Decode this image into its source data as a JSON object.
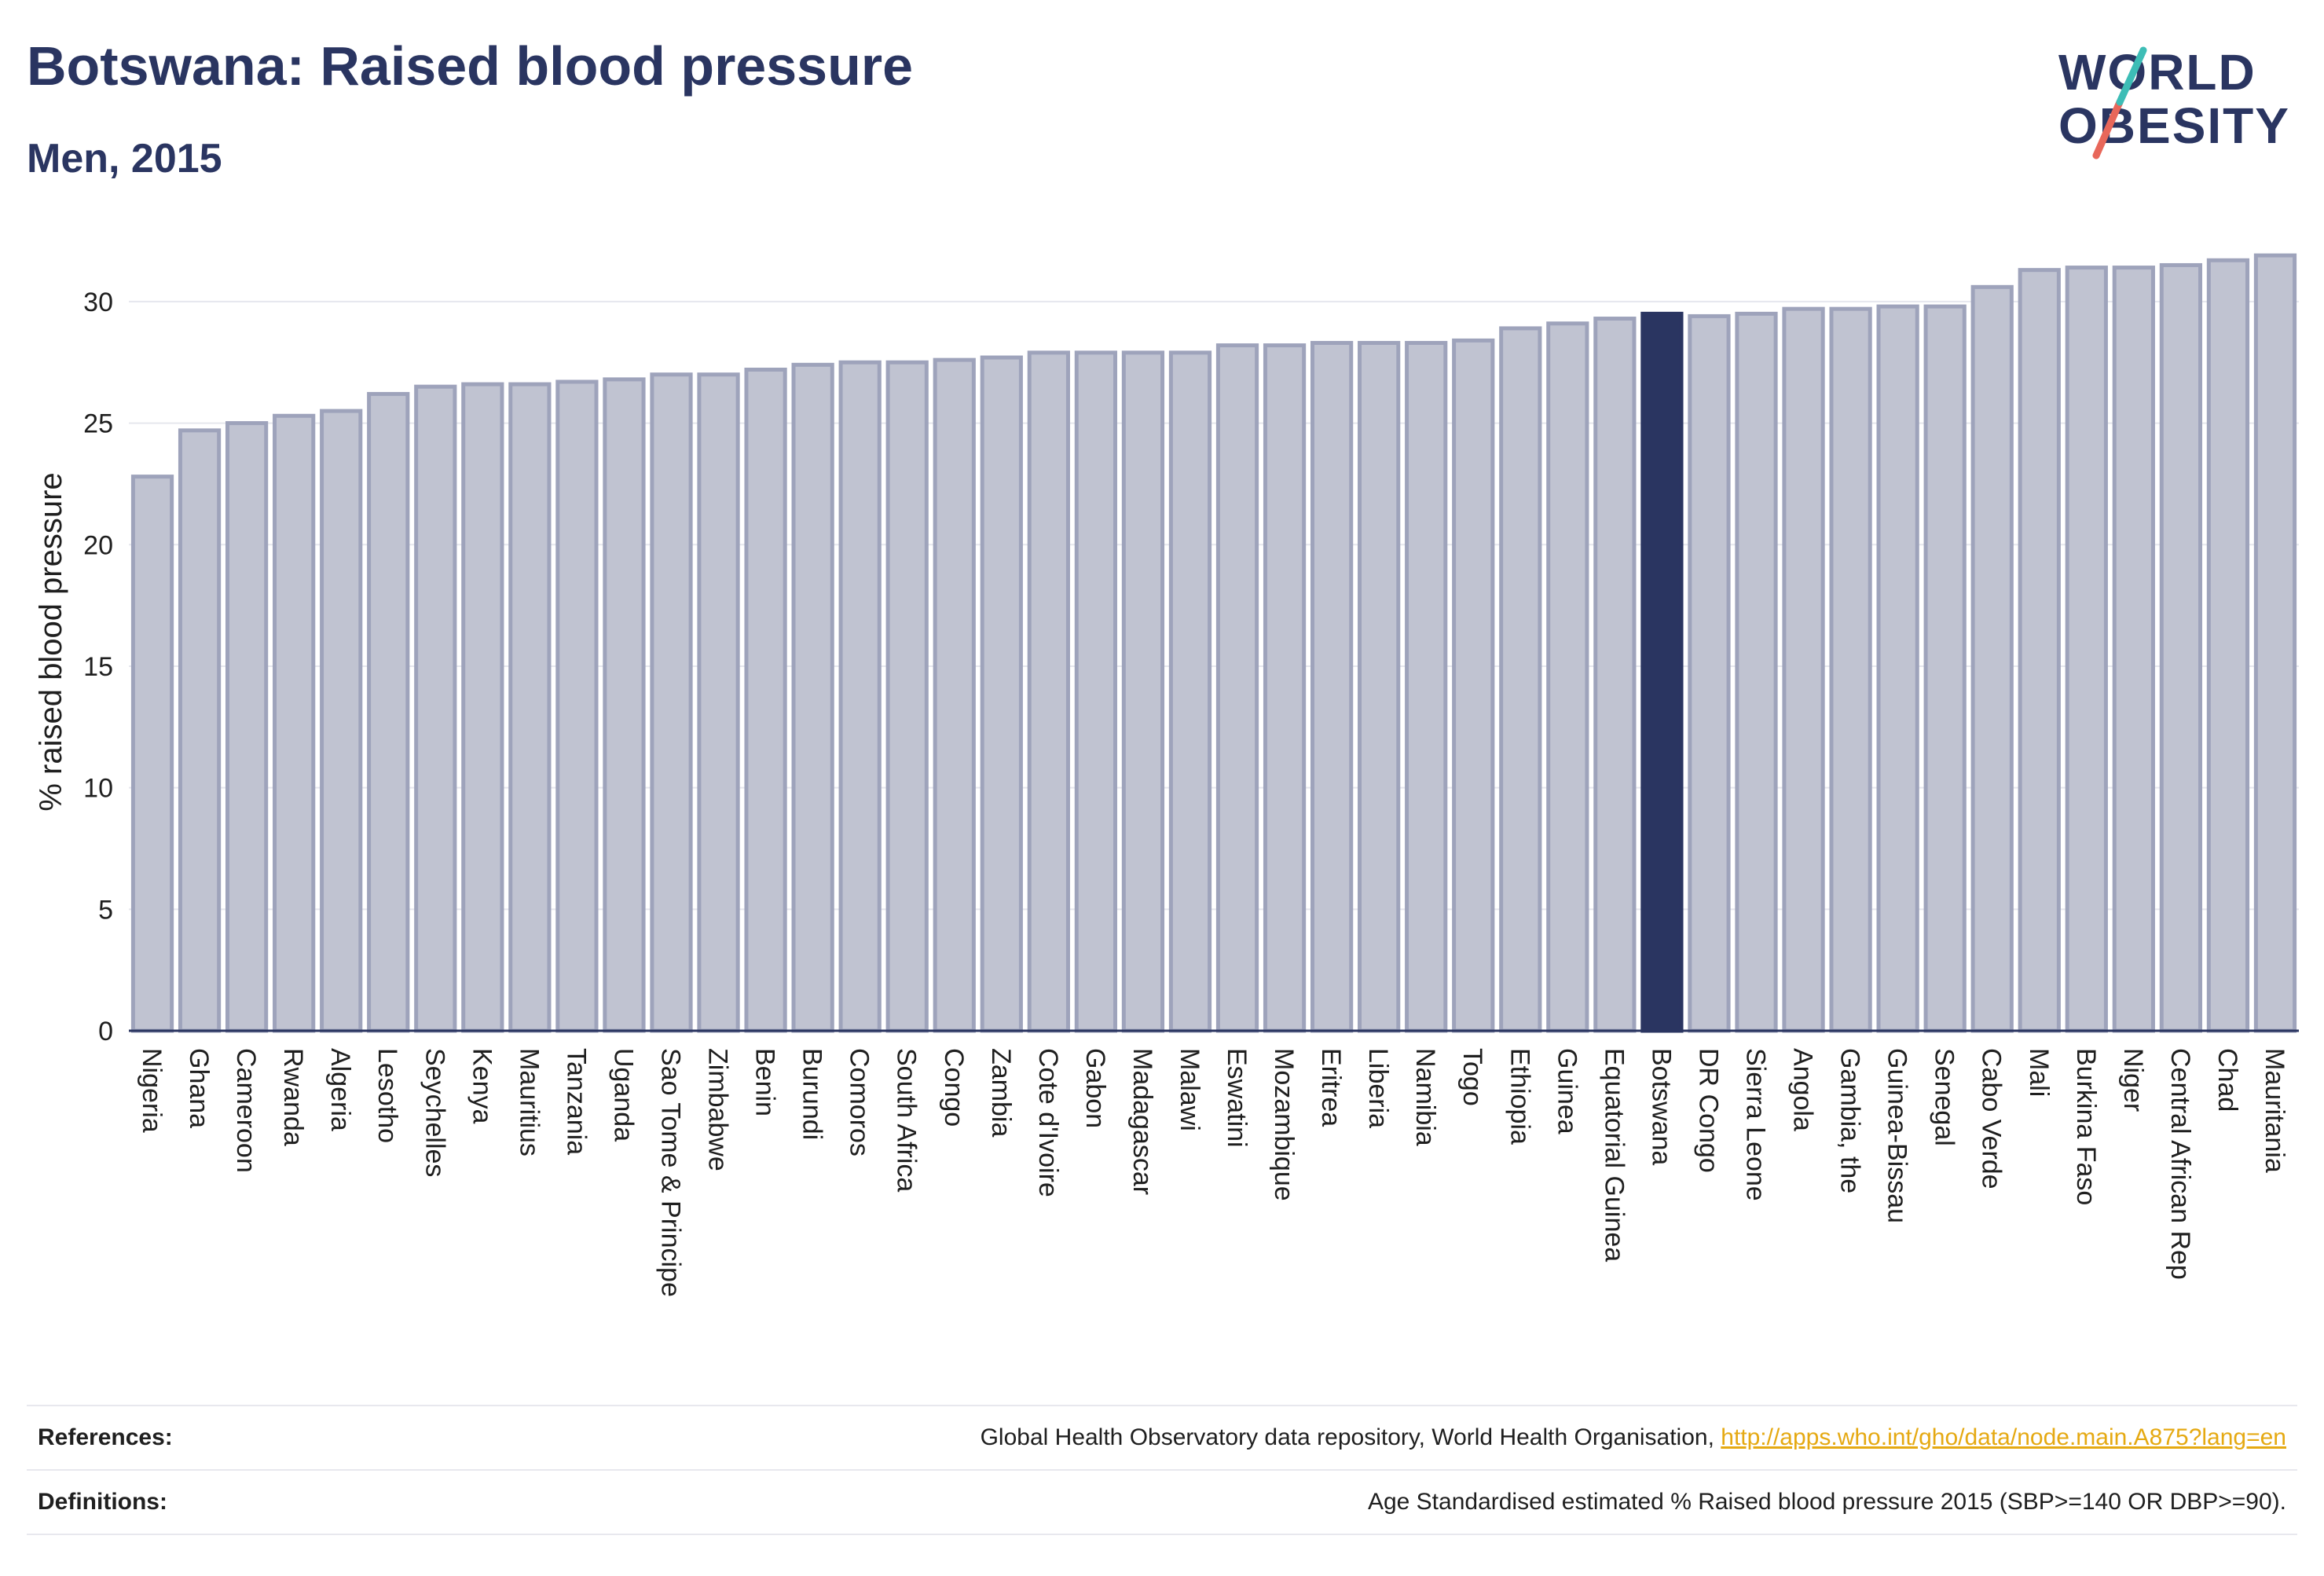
{
  "header": {
    "title": "Botswana: Raised blood pressure",
    "subtitle": "Men, 2015"
  },
  "logo": {
    "line1": "WORLD",
    "line2": "OBESITY"
  },
  "colors": {
    "bar_fill": "#c0c3d1",
    "bar_stroke": "#9ea3bb",
    "highlight": "#2a3561",
    "grid": "#e6e7ee",
    "axis": "#2a3561",
    "link": "#e5a912",
    "logo_slash_teal": "#3dbdb6",
    "logo_slash_red": "#e8675a"
  },
  "chart_data": {
    "type": "bar",
    "title": "Botswana: Raised blood pressure",
    "subtitle": "Men, 2015",
    "ylabel": "% raised blood pressure",
    "xlabel": "",
    "ylim": [
      0,
      32
    ],
    "yticks": [
      0,
      5,
      10,
      15,
      20,
      25,
      30
    ],
    "grid": true,
    "highlight": "Botswana",
    "categories": [
      "Nigeria",
      "Ghana",
      "Cameroon",
      "Rwanda",
      "Algeria",
      "Lesotho",
      "Seychelles",
      "Kenya",
      "Mauritius",
      "Tanzania",
      "Uganda",
      "Sao Tome & Principe",
      "Zimbabwe",
      "Benin",
      "Burundi",
      "Comoros",
      "South Africa",
      "Congo",
      "Zambia",
      "Cote d'Ivoire",
      "Gabon",
      "Madagascar",
      "Malawi",
      "Eswatini",
      "Mozambique",
      "Eritrea",
      "Liberia",
      "Namibia",
      "Togo",
      "Ethiopia",
      "Guinea",
      "Equatorial Guinea",
      "Botswana",
      "DR Congo",
      "Sierra Leone",
      "Angola",
      "Gambia, the",
      "Guinea-Bissau",
      "Senegal",
      "Cabo Verde",
      "Mali",
      "Burkina Faso",
      "Niger",
      "Central African Rep",
      "Chad",
      "Mauritania"
    ],
    "values": [
      22.8,
      24.7,
      25.0,
      25.3,
      25.5,
      26.2,
      26.5,
      26.6,
      26.6,
      26.7,
      26.8,
      27.0,
      27.0,
      27.2,
      27.4,
      27.5,
      27.5,
      27.6,
      27.7,
      27.9,
      27.9,
      27.9,
      27.9,
      28.2,
      28.2,
      28.3,
      28.3,
      28.3,
      28.4,
      28.9,
      29.1,
      29.3,
      29.5,
      29.4,
      29.5,
      29.7,
      29.7,
      29.8,
      29.8,
      30.6,
      31.3,
      31.4,
      31.4,
      31.5,
      31.7,
      31.9
    ]
  },
  "footer": {
    "references_label": "References:",
    "references_text": "Global Health Observatory data repository, World Health Organisation, ",
    "references_link": "http://apps.who.int/gho/data/node.main.A875?lang=en",
    "definitions_label": "Definitions:",
    "definitions_text": "Age Standardised estimated % Raised blood pressure 2015 (SBP>=140 OR DBP>=90)."
  }
}
